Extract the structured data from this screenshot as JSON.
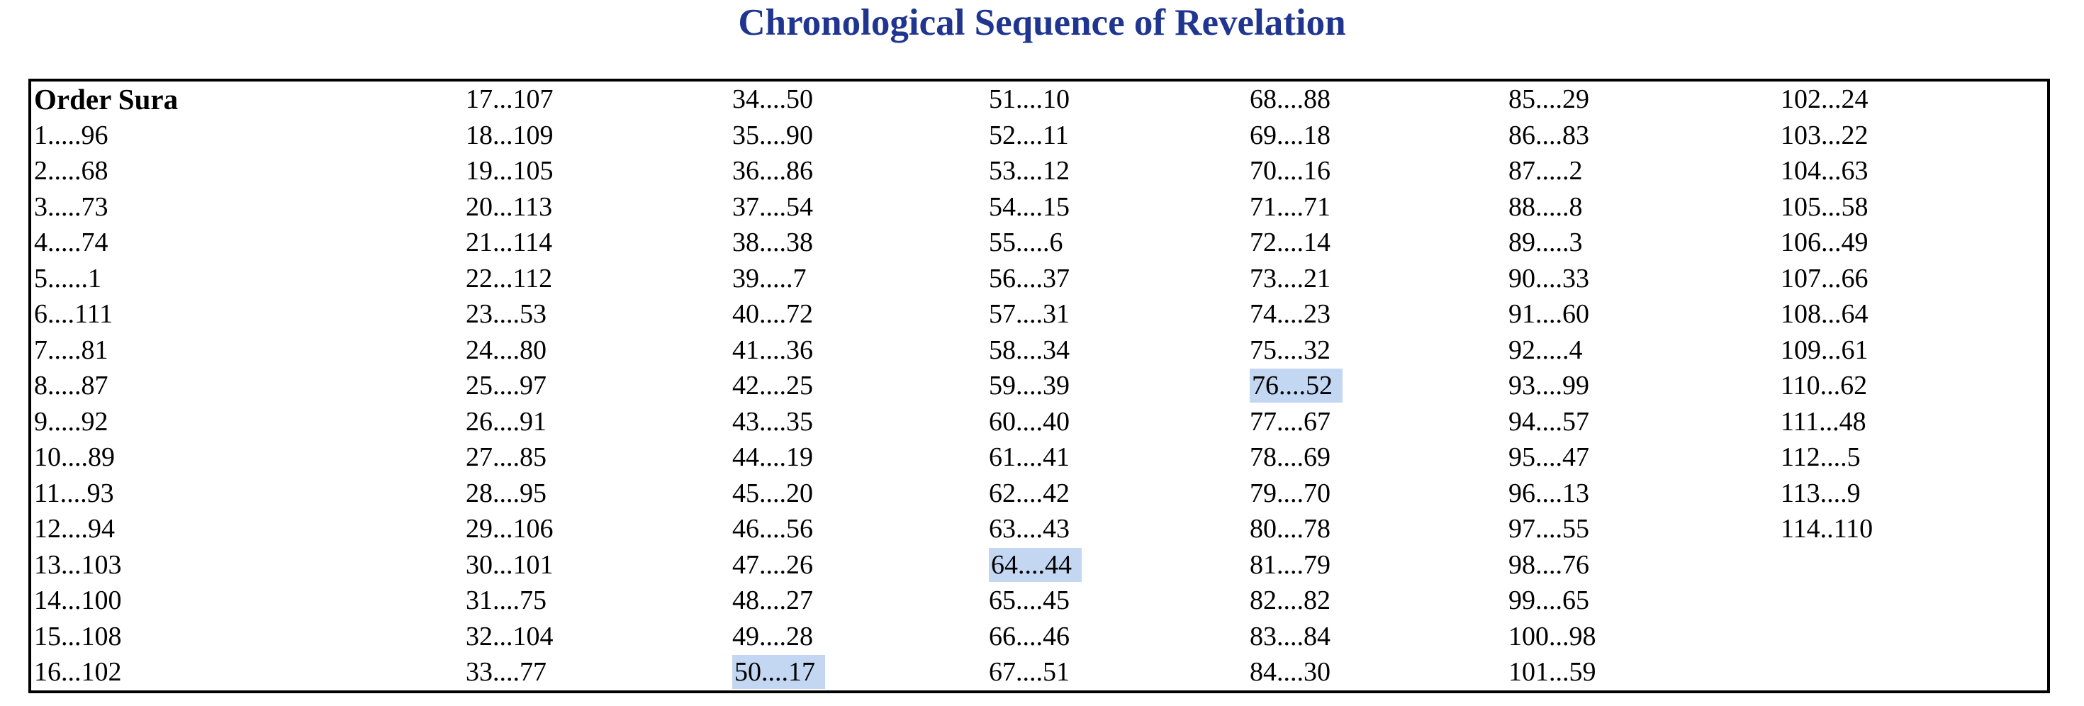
{
  "title": "Chronological Sequence of Revelation",
  "colors": {
    "title": "#1f3590",
    "highlight": "#c3d7f3",
    "table_border": "#000000",
    "text": "#000000",
    "background": "#ffffff"
  },
  "table": {
    "highlighted_entries": [
      "50....17",
      "64....44",
      "76....52"
    ],
    "columns": [
      {
        "header": "Order Sura",
        "entries": [
          "1.....96",
          "2.....68",
          "3.....73",
          "4.....74",
          "5......1",
          "6....111",
          "7.....81",
          "8.....87",
          "9.....92",
          "10....89",
          "11....93",
          "12....94",
          "13...103",
          "14...100",
          "15...108",
          "16...102"
        ]
      },
      {
        "entries": [
          "17...107",
          "18...109",
          "19...105",
          "20...113",
          "21...114",
          "22...112",
          "23....53",
          "24....80",
          "25....97",
          "26....91",
          "27....85",
          "28....95",
          "29...106",
          "30...101",
          "31....75",
          "32...104",
          "33....77"
        ]
      },
      {
        "entries": [
          "34....50",
          "35....90",
          "36....86",
          "37....54",
          "38....38",
          "39.....7",
          "40....72",
          "41....36",
          "42....25",
          "43....35",
          "44....19",
          "45....20",
          "46....56",
          "47....26",
          "48....27",
          "49....28",
          "50....17"
        ]
      },
      {
        "entries": [
          "51....10",
          "52....11",
          "53....12",
          "54....15",
          "55.....6",
          "56....37",
          "57....31",
          "58....34",
          "59....39",
          "60....40",
          "61....41",
          "62....42",
          "63....43",
          "64....44",
          "65....45",
          "66....46",
          "67....51"
        ]
      },
      {
        "entries": [
          "68....88",
          "69....18",
          "70....16",
          "71....71",
          "72....14",
          "73....21",
          "74....23",
          "75....32",
          "76....52",
          "77....67",
          "78....69",
          "79....70",
          "80....78",
          "81....79",
          "82....82",
          "83....84",
          "84....30"
        ]
      },
      {
        "entries": [
          "85....29",
          "86....83",
          "87.....2",
          "88.....8",
          "89.....3",
          "90....33",
          "91....60",
          "92.....4",
          "93....99",
          "94....57",
          "95....47",
          "96....13",
          "97....55",
          "98....76",
          "99....65",
          "100...98",
          "101...59"
        ]
      },
      {
        "entries": [
          "102...24",
          "103...22",
          "104...63",
          "105...58",
          "106...49",
          "107...66",
          "108...64",
          "109...61",
          "110...62",
          "111...48",
          "112....5",
          "113....9",
          "114..110"
        ]
      }
    ]
  }
}
